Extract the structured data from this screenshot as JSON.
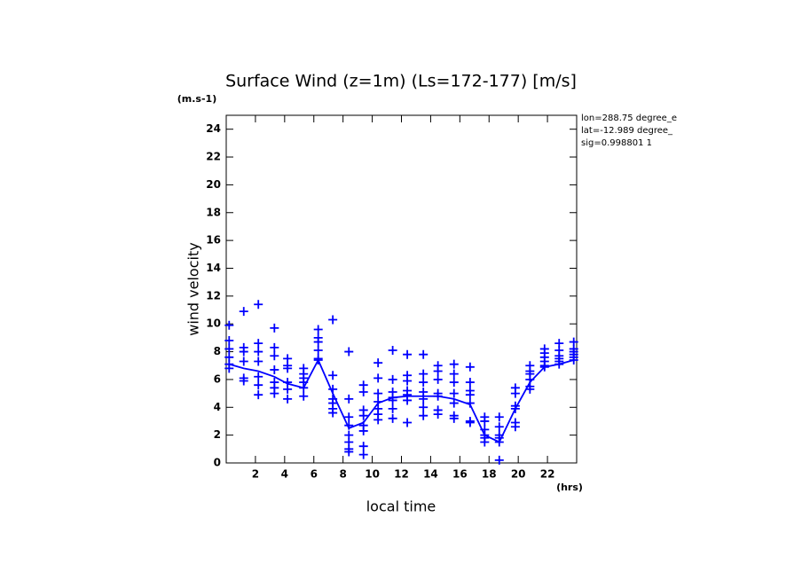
{
  "chart_data": {
    "type": "scatter",
    "title": "Surface Wind (z=1m) (Ls=172-177) [m/s]",
    "y_unit": "(m.s-1)",
    "x_unit": "(hrs)",
    "xlabel": "local time",
    "ylabel": "wind velocity",
    "annotations": [
      "lon=288.75 degree_e",
      "lat=-12.989 degree_",
      "sig=0.998801 1"
    ],
    "xlim": [
      0,
      24
    ],
    "ylim": [
      0,
      25
    ],
    "xticks": [
      2,
      4,
      6,
      8,
      10,
      12,
      14,
      16,
      18,
      20,
      22
    ],
    "yticks": [
      0,
      2,
      4,
      6,
      8,
      10,
      12,
      14,
      16,
      18,
      20,
      22,
      24
    ],
    "series": [
      {
        "style": "line",
        "color": "#0000ff",
        "x": [
          0.2,
          1.2,
          2.2,
          3.3,
          4.2,
          5.3,
          6.3,
          7.3,
          8.4,
          9.4,
          10.4,
          11.4,
          12.4,
          13.5,
          14.5,
          15.6,
          16.7,
          17.7,
          18.7,
          19.8,
          20.8,
          21.8,
          22.8,
          23.8
        ],
        "values": [
          7.1,
          6.8,
          6.6,
          6.2,
          5.7,
          5.4,
          7.4,
          5.0,
          2.5,
          2.9,
          4.3,
          4.7,
          4.8,
          4.8,
          4.8,
          4.6,
          4.2,
          2.0,
          1.5,
          3.9,
          5.8,
          6.9,
          7.1,
          7.4
        ]
      },
      {
        "style": "marker",
        "color": "#0000ff",
        "x": [
          0.2,
          1.2,
          2.2,
          3.3,
          4.2,
          5.3,
          6.3,
          7.3,
          8.4,
          9.4,
          10.4,
          11.4,
          12.4,
          13.5,
          14.5,
          15.6,
          16.7,
          17.7,
          18.7,
          19.8,
          20.8,
          21.8,
          22.8,
          23.8
        ],
        "values": [
          [
            9.9,
            8.8,
            8.2,
            7.6,
            7.1,
            6.8
          ],
          [
            10.9,
            8.3,
            8.0,
            7.3,
            6.1,
            5.9
          ],
          [
            11.4,
            8.6,
            8.0,
            7.3,
            6.2,
            5.6,
            4.9
          ],
          [
            9.7,
            8.3,
            7.7,
            6.7,
            5.8,
            5.4,
            5.0
          ],
          [
            7.5,
            7.0,
            6.8,
            5.8,
            5.3,
            4.6
          ],
          [
            6.8,
            6.4,
            6.1,
            5.8,
            5.4,
            4.8
          ],
          [
            9.6,
            9.0,
            8.7,
            8.1,
            7.5,
            7.4
          ],
          [
            10.3,
            6.3,
            5.3,
            4.6,
            4.3,
            3.9,
            3.6
          ],
          [
            8.0,
            4.6,
            3.3,
            2.7,
            2.0,
            1.5,
            1.0,
            0.8
          ],
          [
            5.6,
            5.1,
            3.8,
            3.4,
            2.7,
            2.3,
            1.2,
            0.6
          ],
          [
            7.2,
            6.1,
            5.0,
            4.4,
            3.9,
            3.5,
            3.1
          ],
          [
            8.1,
            6.0,
            5.1,
            4.7,
            4.5,
            3.9,
            3.2
          ],
          [
            7.8,
            6.3,
            5.9,
            5.2,
            4.9,
            4.5,
            2.9
          ],
          [
            7.8,
            6.4,
            5.8,
            5.1,
            4.6,
            4.0,
            3.4
          ],
          [
            7.0,
            6.6,
            6.0,
            5.0,
            4.8,
            3.8,
            3.5
          ],
          [
            7.1,
            6.4,
            5.8,
            5.0,
            4.3,
            3.4,
            3.2
          ],
          [
            6.9,
            5.8,
            5.2,
            4.9,
            4.3,
            3.0,
            2.9
          ],
          [
            3.3,
            3.0,
            2.4,
            2.0,
            1.8,
            1.5
          ],
          [
            3.3,
            2.6,
            2.0,
            1.8,
            1.5,
            0.2
          ],
          [
            5.4,
            5.0,
            4.1,
            3.9,
            2.9,
            2.6
          ],
          [
            7.0,
            6.6,
            6.4,
            6.0,
            5.5,
            5.3
          ],
          [
            8.2,
            7.9,
            7.6,
            7.3,
            7.0,
            6.9
          ],
          [
            8.6,
            8.1,
            7.7,
            7.5,
            7.3,
            7.1
          ],
          [
            8.7,
            8.2,
            8.0,
            7.8,
            7.6,
            7.4
          ]
        ]
      }
    ]
  }
}
